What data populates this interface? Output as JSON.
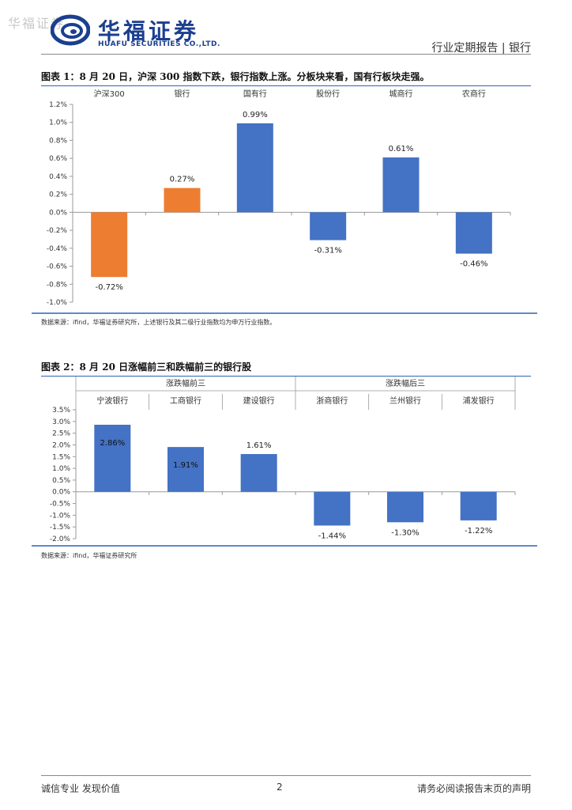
{
  "header": {
    "watermark": "华福证券",
    "brand_cn": "华福证券",
    "brand_en": "HUAFU SECURITIES CO.,LTD.",
    "report_type": "行业定期报告 | 银行"
  },
  "figure1": {
    "title": "图表 1：8 月 20 日，沪深 300 指数下跌，银行指数上涨。分板块来看，国有行板块走强。",
    "source": "数据来源：ifind，华福证券研究所，上述银行及其二级行业指数均为申万行业指数。"
  },
  "figure2": {
    "title": "图表 2：8 月 20 日涨幅前三和跌幅前三的银行股",
    "source": "数据来源：ifind，华福证券研究所"
  },
  "footer": {
    "left": "诚信专业  发现价值",
    "page": "2",
    "right": "请务必阅读报告末页的声明"
  },
  "colors": {
    "blue": "#4472C4",
    "orange": "#ED7D31",
    "brand": "#1b3f8f"
  },
  "chart_data": [
    {
      "type": "bar",
      "title": "8 月 20 日，沪深 300 指数下跌，银行指数上涨。分板块来看，国有行板块走强。",
      "categories": [
        "沪深300",
        "银行",
        "国有行",
        "股份行",
        "城商行",
        "农商行"
      ],
      "values": [
        -0.72,
        0.27,
        0.99,
        -0.31,
        0.61,
        -0.46
      ],
      "labels": [
        "-0.72%",
        "0.27%",
        "0.99%",
        "-0.31%",
        "0.61%",
        "-0.46%"
      ],
      "bar_colors": [
        "#ED7D31",
        "#ED7D31",
        "#4472C4",
        "#4472C4",
        "#4472C4",
        "#4472C4"
      ],
      "yticks": [
        "1.2%",
        "1.0%",
        "0.8%",
        "0.6%",
        "0.4%",
        "0.2%",
        "0.0%",
        "-0.2%",
        "-0.4%",
        "-0.6%",
        "-0.8%",
        "-1.0%"
      ],
      "ylim": [
        -1.0,
        1.2
      ],
      "xlabel": "",
      "ylabel": "",
      "grid": false
    },
    {
      "type": "bar",
      "title": "8 月 20 日涨幅前三和跌幅前三的银行股",
      "groups": [
        {
          "name": "涨跌幅前三",
          "categories": [
            "宁波银行",
            "工商银行",
            "建设银行"
          ]
        },
        {
          "name": "涨跌幅后三",
          "categories": [
            "浙商银行",
            "兰州银行",
            "浦发银行"
          ]
        }
      ],
      "categories": [
        "宁波银行",
        "工商银行",
        "建设银行",
        "浙商银行",
        "兰州银行",
        "浦发银行"
      ],
      "values": [
        2.86,
        1.91,
        1.61,
        -1.44,
        -1.3,
        -1.22
      ],
      "labels": [
        "2.86%",
        "1.91%",
        "1.61%",
        "-1.44%",
        "-1.30%",
        "-1.22%"
      ],
      "bar_colors": [
        "#4472C4",
        "#4472C4",
        "#4472C4",
        "#4472C4",
        "#4472C4",
        "#4472C4"
      ],
      "yticks": [
        "3.5%",
        "3.0%",
        "2.5%",
        "2.0%",
        "1.5%",
        "1.0%",
        "0.5%",
        "0.0%",
        "-0.5%",
        "-1.0%",
        "-1.5%",
        "-2.0%"
      ],
      "ylim": [
        -2.0,
        3.5
      ],
      "xlabel": "",
      "ylabel": "",
      "grid": false
    }
  ]
}
